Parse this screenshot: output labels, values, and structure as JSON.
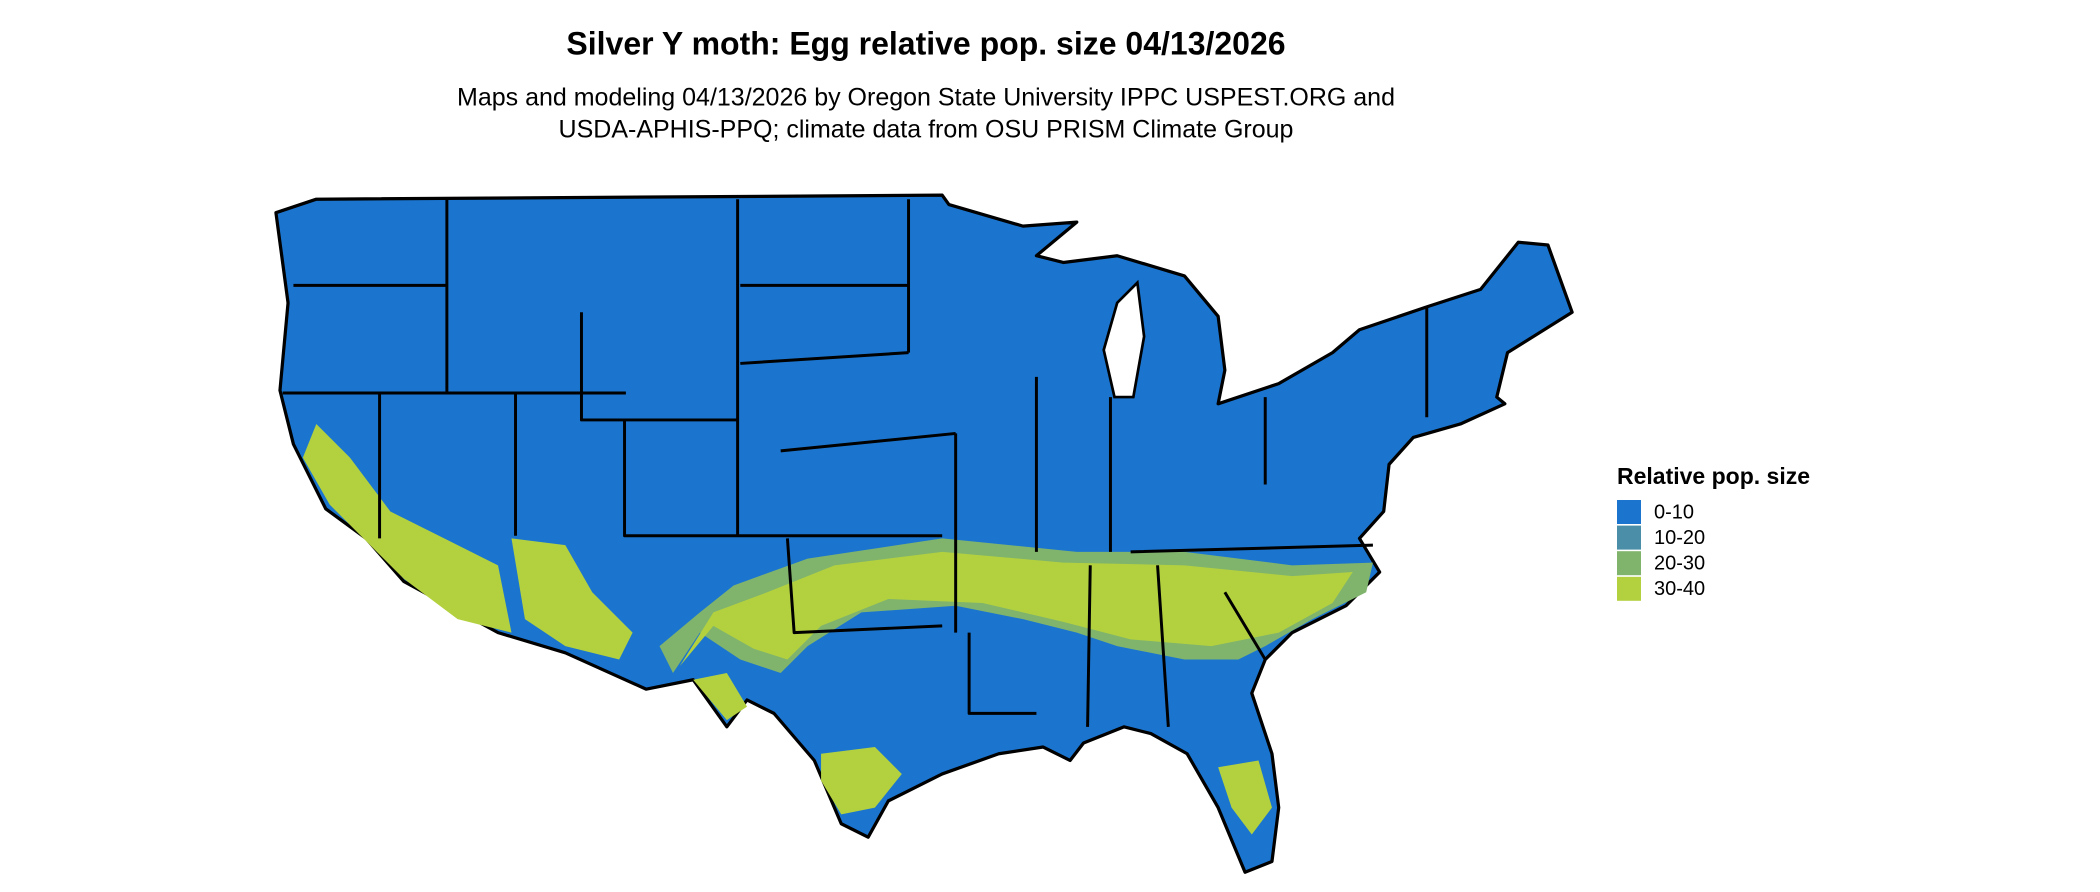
{
  "title": "Silver Y moth: Egg relative pop. size 04/13/2026",
  "subtitle": [
    "Maps and modeling 04/13/2026 by Oregon State University IPPC USPEST.ORG and",
    "USDA-APHIS-PPQ; climate data from OSU PRISM Climate Group"
  ],
  "legend": {
    "title": "Relative pop. size",
    "items": [
      {
        "label": "0-10",
        "color": "#1b75cf"
      },
      {
        "label": "10-20",
        "color": "#4a8fa7"
      },
      {
        "label": "20-30",
        "color": "#80b46c"
      },
      {
        "label": "30-40",
        "color": "#b3d13f"
      }
    ]
  }
}
